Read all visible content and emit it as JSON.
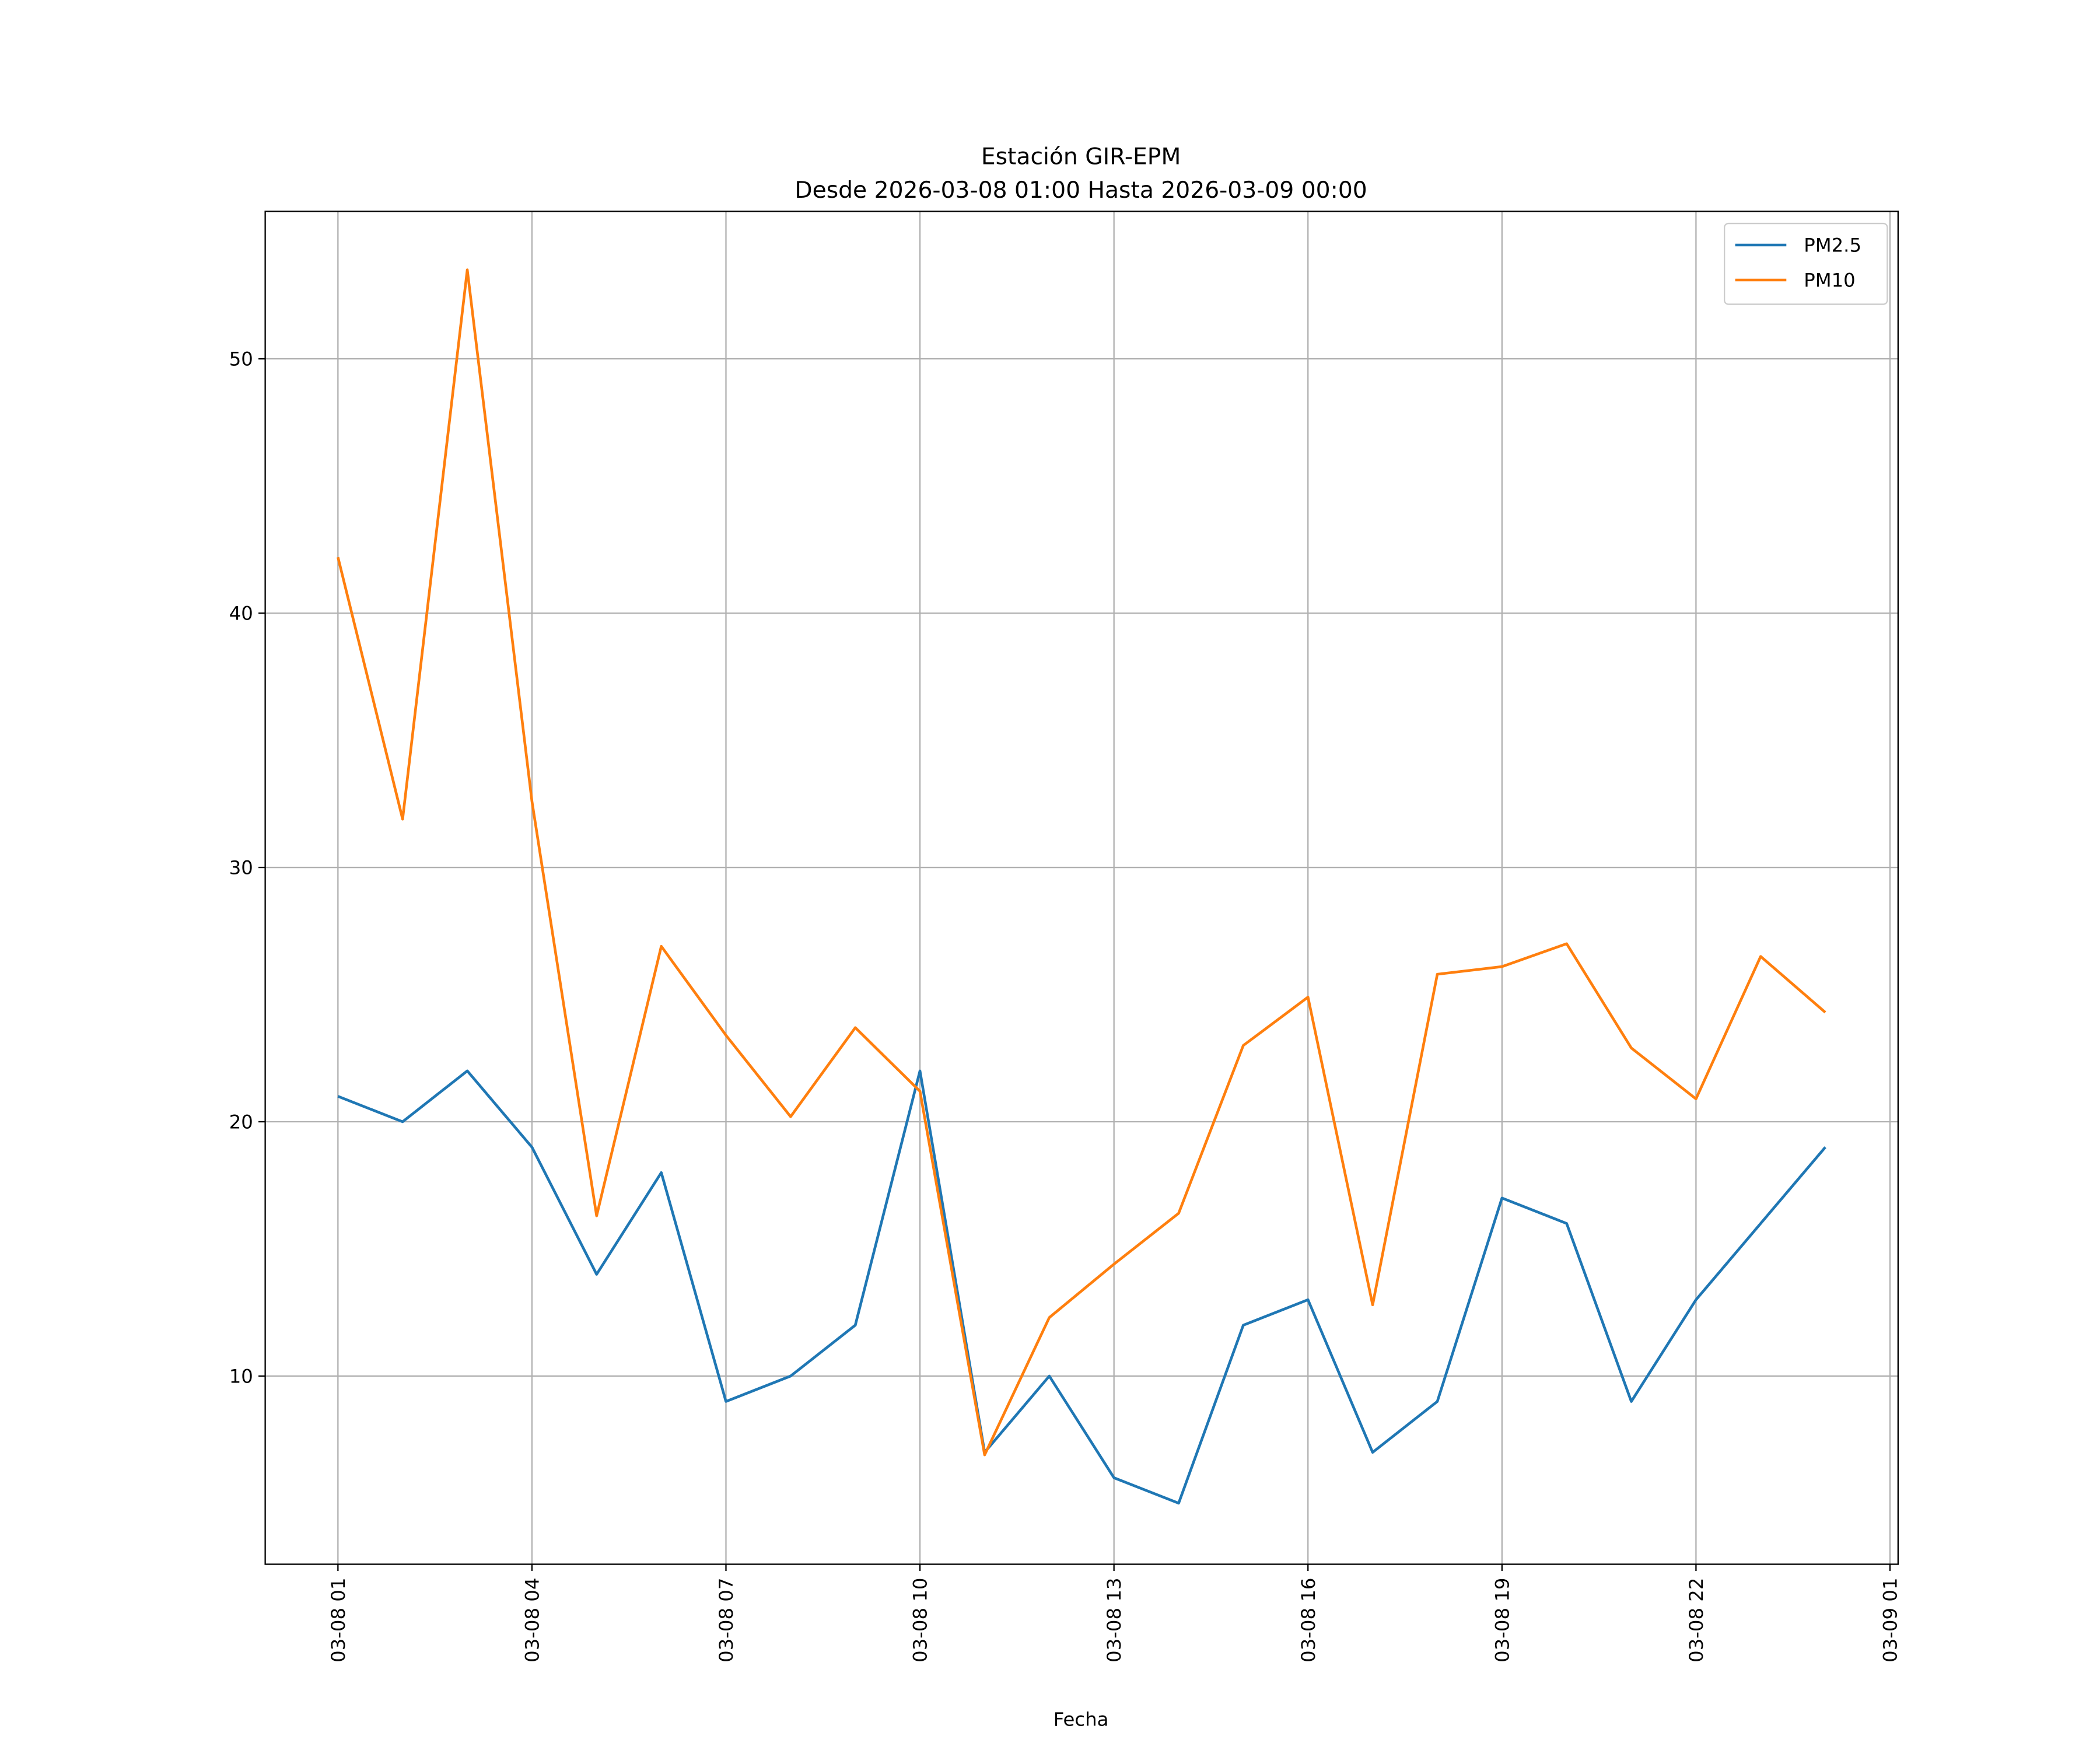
{
  "chart_data": {
    "type": "line",
    "title": "Estación GIR-EPM",
    "subtitle": "Desde 2026-03-08 01:00 Hasta 2026-03-09 00:00",
    "xlabel": "Fecha",
    "ylabel": "",
    "x_unit": "hours since 2026-03-08 00:00",
    "x": [
      1,
      2,
      3,
      4,
      5,
      6,
      7,
      8,
      9,
      10,
      11,
      12,
      13,
      14,
      15,
      16,
      17,
      18,
      19,
      20,
      21,
      22,
      23,
      24
    ],
    "xlim": [
      -0.125,
      25.125
    ],
    "ylim": [
      2.6,
      55.8
    ],
    "xticks": [
      1,
      4,
      7,
      10,
      13,
      16,
      19,
      22,
      25
    ],
    "xtick_labels": [
      "03-08 01",
      "03-08 04",
      "03-08 07",
      "03-08 10",
      "03-08 13",
      "03-08 16",
      "03-08 19",
      "03-08 22",
      "03-09 01"
    ],
    "yticks": [
      10,
      20,
      30,
      40,
      50
    ],
    "ytick_labels": [
      "10",
      "20",
      "30",
      "40",
      "50"
    ],
    "grid": true,
    "legend_position": "top-right",
    "series": [
      {
        "name": "PM2.5",
        "color": "#1f77b4",
        "values": [
          21,
          20,
          22,
          19,
          14,
          18,
          9,
          10,
          12,
          22,
          7,
          10,
          6,
          5,
          12,
          13,
          7,
          9,
          17,
          16,
          9,
          13,
          16,
          19
        ]
      },
      {
        "name": "PM10",
        "color": "#ff7f0e",
        "values": [
          42.2,
          31.9,
          53.5,
          32.6,
          16.3,
          26.9,
          23.4,
          20.2,
          23.7,
          21.2,
          6.9,
          12.3,
          14.4,
          16.4,
          23.0,
          24.9,
          12.8,
          25.8,
          26.1,
          27.0,
          22.9,
          20.9,
          26.5,
          24.3
        ]
      }
    ]
  }
}
